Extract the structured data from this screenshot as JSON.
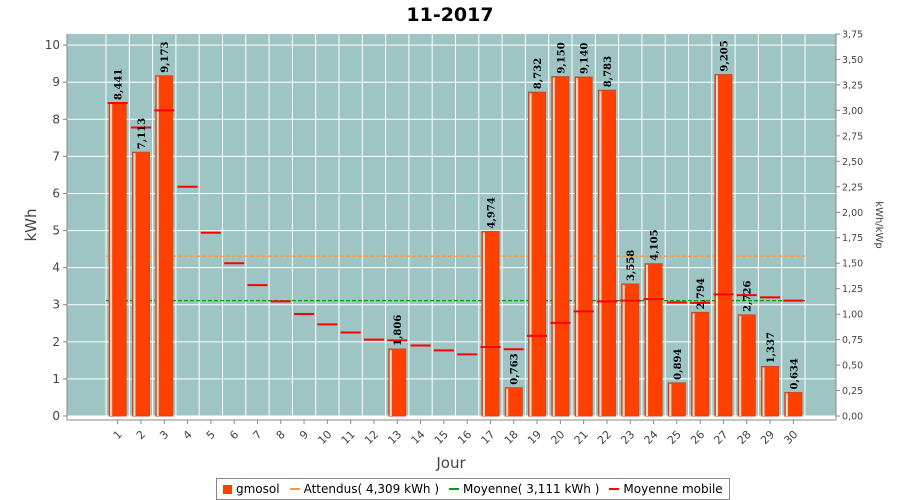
{
  "colors": {
    "plot_bg": "#9ec4c4",
    "grid": "#ffffff",
    "bar": "#ff4000",
    "bar_edge": "#c84a1e",
    "attendus": "#ff9933",
    "moyenne": "#00a000",
    "moyenne_mobile": "#ff0000"
  },
  "chart_data": {
    "type": "bar",
    "title": "11-2017",
    "xlabel": "Jour",
    "ylabel": "kWh",
    "y2label": "kWh/kWp",
    "ylim": [
      0,
      10.3
    ],
    "y2lim": [
      0,
      3.75
    ],
    "yticks": [
      "0",
      "1",
      "2",
      "3",
      "4",
      "5",
      "6",
      "7",
      "8",
      "9",
      "10"
    ],
    "y2ticks": [
      "0,00",
      "0,25",
      "0,50",
      "0,75",
      "1,00",
      "1,25",
      "1,50",
      "1,75",
      "2,00",
      "2,25",
      "2,50",
      "2,75",
      "3,00",
      "3,25",
      "3,50",
      "3,75"
    ],
    "categories": [
      "1",
      "2",
      "3",
      "4",
      "5",
      "6",
      "7",
      "8",
      "9",
      "10",
      "11",
      "12",
      "13",
      "14",
      "15",
      "16",
      "17",
      "18",
      "19",
      "20",
      "21",
      "22",
      "23",
      "24",
      "25",
      "26",
      "27",
      "28",
      "29",
      "30"
    ],
    "series": [
      {
        "name": "gmosol",
        "values": [
          8.441,
          7.113,
          9.173,
          null,
          null,
          null,
          null,
          null,
          null,
          null,
          null,
          null,
          1.806,
          null,
          null,
          null,
          4.974,
          0.763,
          8.732,
          9.15,
          9.14,
          8.783,
          3.558,
          4.105,
          0.894,
          2.794,
          9.205,
          2.726,
          1.337,
          0.634
        ],
        "labels": [
          "8,441",
          "7,113",
          "9,173",
          "",
          "",
          "",
          "",
          "",
          "",
          "",
          "",
          "",
          "1,806",
          "",
          "",
          "",
          "4,974",
          "0,763",
          "8,732",
          "9,150",
          "9,140",
          "8,783",
          "3,558",
          "4,105",
          "0,894",
          "2,794",
          "9,205",
          "2,726",
          "1,337",
          "0,634"
        ]
      },
      {
        "name": "Moyenne mobile",
        "values": [
          8.44,
          7.78,
          8.24,
          6.18,
          4.94,
          4.12,
          3.53,
          3.09,
          2.75,
          2.47,
          2.25,
          2.06,
          2.04,
          1.9,
          1.77,
          1.66,
          1.86,
          1.8,
          2.16,
          2.51,
          2.82,
          3.09,
          3.11,
          3.15,
          3.06,
          3.05,
          3.28,
          3.26,
          3.2,
          3.11
        ]
      }
    ],
    "reference_lines": [
      {
        "name": "Attendus( 4,309 kWh )",
        "value": 4.309,
        "style": "dashed"
      },
      {
        "name": "Moyenne( 3,111 kWh )",
        "value": 3.111,
        "style": "dashed"
      }
    ],
    "legend": [
      "gmosol",
      "Attendus( 4,309 kWh )",
      "Moyenne( 3,111 kWh )",
      "Moyenne mobile"
    ],
    "legend_position": "bottom",
    "grid": true
  }
}
